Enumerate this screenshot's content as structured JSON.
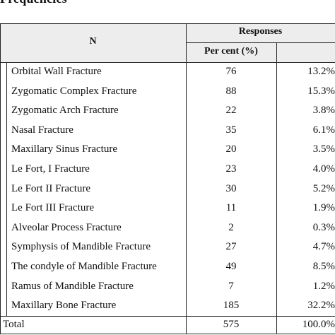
{
  "heading": "Frequencies",
  "header": {
    "n_label": "N",
    "responses_label": "Responses",
    "percent_label": "Per cent (%)"
  },
  "rows": [
    {
      "label": "Orbital Wall Fracture",
      "count": "76",
      "percent": "13.2%"
    },
    {
      "label": "Zygomatic Complex Fracture",
      "count": "88",
      "percent": "15.3%"
    },
    {
      "label": "Zygomatic Arch Fracture",
      "count": "22",
      "percent": "3.8%"
    },
    {
      "label": "Nasal Fracture",
      "count": "35",
      "percent": "6.1%"
    },
    {
      "label": "Maxillary Sinus Fracture",
      "count": "20",
      "percent": "3.5%"
    },
    {
      "label": "Le Fort, I  Fracture",
      "count": "23",
      "percent": "4.0%"
    },
    {
      "label": "Le Fort II  Fracture",
      "count": "30",
      "percent": "5.2%"
    },
    {
      "label": "Le Fort III  Fracture",
      "count": "11",
      "percent": "1.9%"
    },
    {
      "label": "Alveolar Process Fracture",
      "count": "2",
      "percent": "0.3%"
    },
    {
      "label": "Symphysis of Mandible Fracture",
      "count": "27",
      "percent": "4.7%"
    },
    {
      "label": "The condyle of Mandible Fracture",
      "count": "49",
      "percent": "8.5%"
    },
    {
      "label": "Ramus of Mandible Fracture",
      "count": "7",
      "percent": "1.2%"
    },
    {
      "label": "Maxillary Bone Fracture",
      "count": "185",
      "percent": "32.2%"
    }
  ],
  "total": {
    "label": "Total",
    "count": "575",
    "percent": "100.0%"
  }
}
